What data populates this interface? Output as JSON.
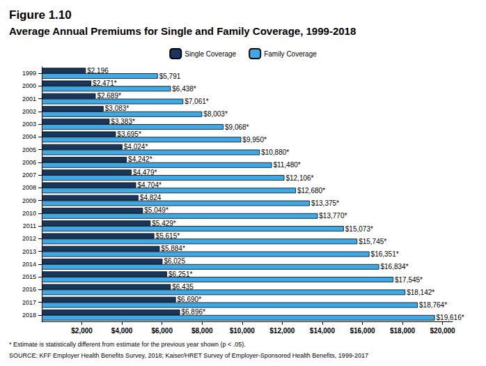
{
  "chart_data": {
    "type": "bar",
    "title": "Figure 1.10",
    "subtitle": "Average Annual Premiums for Single and Family Coverage, 1999-2018",
    "notes": [
      "* Estimate is statistically different from estimate for the previous year shown (p < .05).",
      "SOURCE: KFF Employer Health Benefits Survey, 2018; Kaiser/HRET Survey of Employer-Sponsored Health Benefits, 1999-2017"
    ],
    "orientation": "horizontal",
    "legend": "top",
    "grid": false,
    "data_labels": true,
    "categories": [
      "1999",
      "2000",
      "2001",
      "2002",
      "2003",
      "2004",
      "2005",
      "2006",
      "2007",
      "2008",
      "2009",
      "2010",
      "2011",
      "2012",
      "2013",
      "2014",
      "2015",
      "2016",
      "2017",
      "2018"
    ],
    "series": [
      {
        "name": "Single Coverage",
        "color": "#17375e",
        "values": [
          2196,
          2471,
          2689,
          3083,
          3383,
          3695,
          4024,
          4242,
          4479,
          4704,
          4824,
          5049,
          5429,
          5615,
          5884,
          6025,
          6251,
          6435,
          6690,
          6896
        ],
        "value_labels": [
          "$2,196",
          "$2,471*",
          "$2,689*",
          "$3,083*",
          "$3,383*",
          "$3,695*",
          "$4,024*",
          "$4,242*",
          "$4,479*",
          "$4,704*",
          "$4,824",
          "$5,049*",
          "$5,429*",
          "$5,615*",
          "$5,884*",
          "$6,025",
          "$6,251*",
          "$6,435",
          "$6,690*",
          "$6,896*"
        ]
      },
      {
        "name": "Family Coverage",
        "color": "#3fa9e6",
        "values": [
          5791,
          6438,
          7061,
          8003,
          9068,
          9950,
          10880,
          11480,
          12106,
          12680,
          13375,
          13770,
          15073,
          15745,
          16351,
          16834,
          17545,
          18142,
          18764,
          19616
        ],
        "value_labels": [
          "$5,791",
          "$6,438*",
          "$7,061*",
          "$8,003*",
          "$9,068*",
          "$9,950*",
          "$10,880*",
          "$11,480*",
          "$12,106*",
          "$12,680*",
          "$13,375*",
          "$13,770*",
          "$15,073*",
          "$15,745*",
          "$16,351*",
          "$16,834*",
          "$17,545*",
          "$18,142*",
          "$18,764*",
          "$19,616*"
        ]
      }
    ],
    "xlim": [
      0,
      20500
    ],
    "xticks": [
      {
        "value": 2000,
        "label": "$2,000"
      },
      {
        "value": 4000,
        "label": "$4,000"
      },
      {
        "value": 6000,
        "label": "$6,000"
      },
      {
        "value": 8000,
        "label": "$8,000"
      },
      {
        "value": 10000,
        "label": "$10,000"
      },
      {
        "value": 12000,
        "label": "$12,000"
      },
      {
        "value": 14000,
        "label": "$14,000"
      },
      {
        "value": 16000,
        "label": "$16,000"
      },
      {
        "value": 18000,
        "label": "$18,000"
      },
      {
        "value": 20000,
        "label": "$20,000"
      }
    ]
  }
}
